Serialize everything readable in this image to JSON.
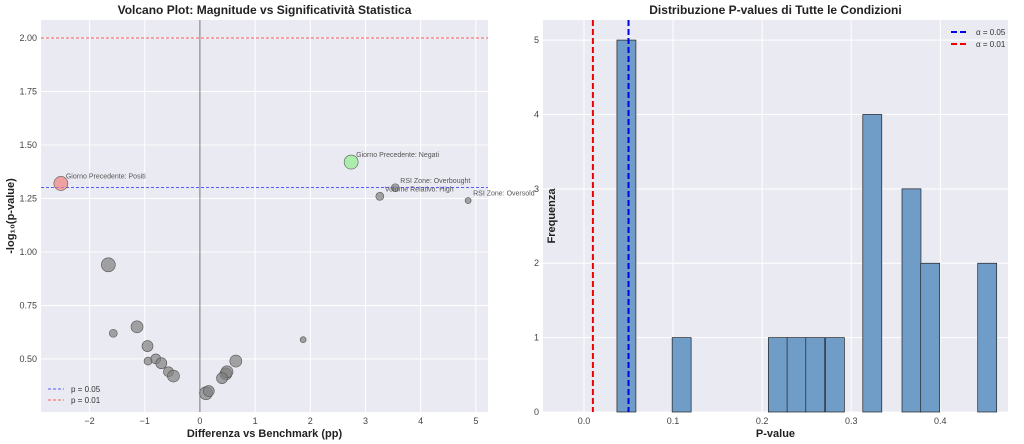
{
  "chart_data": [
    {
      "type": "scatter",
      "title": "Volcano Plot: Magnitude vs Significatività Statistica",
      "xlabel": "Differenza vs Benchmark (pp)",
      "ylabel": "-log₁₀(p-value)",
      "xlim": [
        -2.88,
        5.22
      ],
      "ylim": [
        0.252,
        2.084
      ],
      "xticks": [
        -2,
        -1,
        0,
        1,
        2,
        3,
        4,
        5
      ],
      "xtick_labels": [
        "−2",
        "−1",
        "0",
        "1",
        "2",
        "3",
        "4",
        "5"
      ],
      "yticks": [
        0.5,
        0.75,
        1.0,
        1.25,
        1.5,
        1.75,
        2.0
      ],
      "ytick_labels": [
        "0.50",
        "0.75",
        "1.00",
        "1.25",
        "1.50",
        "1.75",
        "2.00"
      ],
      "grid": true,
      "reference_lines": [
        {
          "type": "h",
          "value": 1.301,
          "label": "p = 0.05",
          "color": "#5a5aff"
        },
        {
          "type": "h",
          "value": 2.0,
          "label": "p = 0.01",
          "color": "#ff5a5a"
        },
        {
          "type": "v",
          "value": 0,
          "color": "#555555"
        }
      ],
      "legend_position": "lower-left",
      "points": [
        {
          "x": -2.52,
          "y": 1.32,
          "size": 7,
          "color": "#f08080",
          "label": "Giorno Precedente: Positi"
        },
        {
          "x": 2.74,
          "y": 1.42,
          "size": 7,
          "color": "#90ee90",
          "label": "Giorno Precedente: Negati"
        },
        {
          "x": 3.54,
          "y": 1.3,
          "size": 4,
          "color": "#808080",
          "label": "RSI Zone: Overbought"
        },
        {
          "x": 3.26,
          "y": 1.26,
          "size": 4,
          "color": "#808080",
          "label": "Volume Relativo: High"
        },
        {
          "x": 4.86,
          "y": 1.24,
          "size": 3,
          "color": "#808080",
          "label": "RSI Zone: Oversold"
        },
        {
          "x": -1.66,
          "y": 0.94,
          "size": 7,
          "color": "#808080"
        },
        {
          "x": -1.57,
          "y": 0.62,
          "size": 4,
          "color": "#808080"
        },
        {
          "x": -1.14,
          "y": 0.65,
          "size": 6,
          "color": "#808080"
        },
        {
          "x": -0.95,
          "y": 0.56,
          "size": 5.5,
          "color": "#808080"
        },
        {
          "x": -0.94,
          "y": 0.49,
          "size": 4,
          "color": "#808080"
        },
        {
          "x": -0.8,
          "y": 0.5,
          "size": 5,
          "color": "#808080"
        },
        {
          "x": -0.7,
          "y": 0.48,
          "size": 5.5,
          "color": "#808080"
        },
        {
          "x": -0.57,
          "y": 0.44,
          "size": 5,
          "color": "#808080"
        },
        {
          "x": -0.48,
          "y": 0.42,
          "size": 6,
          "color": "#808080"
        },
        {
          "x": 1.87,
          "y": 0.59,
          "size": 3,
          "color": "#808080"
        },
        {
          "x": 0.65,
          "y": 0.49,
          "size": 6,
          "color": "#808080"
        },
        {
          "x": 0.47,
          "y": 0.43,
          "size": 6,
          "color": "#808080"
        },
        {
          "x": 0.49,
          "y": 0.44,
          "size": 6,
          "color": "#808080"
        },
        {
          "x": 0.4,
          "y": 0.41,
          "size": 5.5,
          "color": "#808080"
        },
        {
          "x": 0.11,
          "y": 0.34,
          "size": 6.5,
          "color": "#808080"
        },
        {
          "x": 0.16,
          "y": 0.35,
          "size": 5.5,
          "color": "#808080"
        }
      ]
    },
    {
      "type": "bar",
      "title": "Distribuzione P-values di Tutte le Condizioni",
      "xlabel": "P-value",
      "ylabel": "Frequenza",
      "xlim": [
        -0.046,
        0.476
      ],
      "ylim": [
        0,
        5.27
      ],
      "xticks": [
        0.0,
        0.1,
        0.2,
        0.3,
        0.4
      ],
      "xtick_labels": [
        "0.0",
        "0.1",
        "0.2",
        "0.3",
        "0.4"
      ],
      "yticks": [
        0,
        1,
        2,
        3,
        4,
        5
      ],
      "ytick_labels": [
        "0",
        "1",
        "2",
        "3",
        "4",
        "5"
      ],
      "grid": true,
      "bin_width": 0.0213,
      "bins": [
        {
          "start": 0.037,
          "count": 5
        },
        {
          "start": 0.099,
          "count": 1
        },
        {
          "start": 0.207,
          "count": 1
        },
        {
          "start": 0.228,
          "count": 1
        },
        {
          "start": 0.249,
          "count": 1
        },
        {
          "start": 0.271,
          "count": 1
        },
        {
          "start": 0.313,
          "count": 4
        },
        {
          "start": 0.357,
          "count": 3
        },
        {
          "start": 0.378,
          "count": 2
        },
        {
          "start": 0.442,
          "count": 2
        }
      ],
      "bar_color": "#6f9dc8",
      "reference_lines": [
        {
          "type": "v",
          "value": 0.05,
          "label": "α = 0.05",
          "color": "#0000ee"
        },
        {
          "type": "v",
          "value": 0.01,
          "label": "α = 0.01",
          "color": "#ee0000"
        }
      ],
      "legend_position": "top-right"
    }
  ]
}
